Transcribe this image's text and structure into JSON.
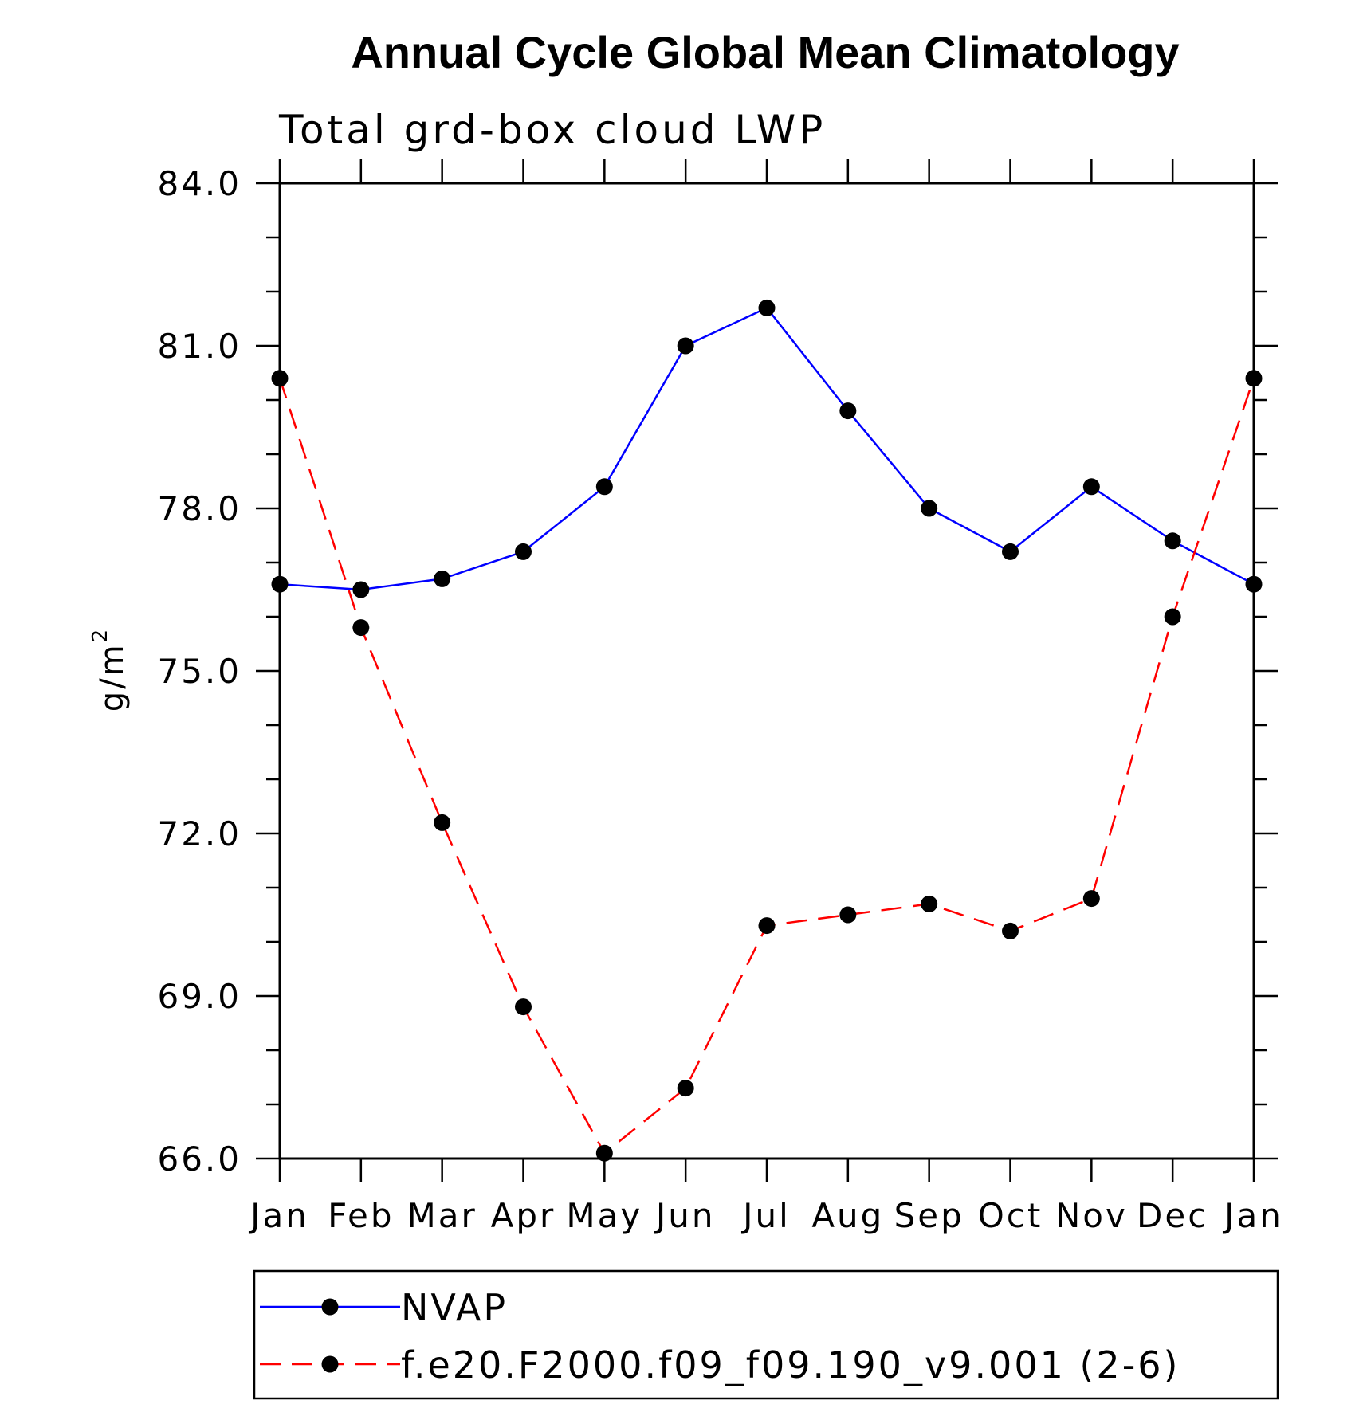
{
  "chart_data": {
    "type": "line",
    "title": "Annual Cycle Global Mean Climatology",
    "subtitle": "Total grd-box cloud LWP",
    "xlabel": "",
    "ylabel": "g/m",
    "ylabel_superscript": "2",
    "categories": [
      "Jan",
      "Feb",
      "Mar",
      "Apr",
      "May",
      "Jun",
      "Jul",
      "Aug",
      "Sep",
      "Oct",
      "Nov",
      "Dec",
      "Jan"
    ],
    "ylim": [
      66.0,
      84.0
    ],
    "y_ticks": [
      "66.0",
      "69.0",
      "72.0",
      "75.0",
      "78.0",
      "81.0",
      "84.0"
    ],
    "grid": false,
    "legend_placement": "bottom",
    "series": [
      {
        "name": "NVAP",
        "color": "#0000ff",
        "line_style": "solid",
        "marker": "filled-circle",
        "values": [
          76.6,
          76.5,
          76.7,
          77.2,
          78.4,
          81.0,
          81.7,
          79.8,
          78.0,
          77.2,
          78.4,
          77.4,
          76.6
        ]
      },
      {
        "name": "f.e20.F2000.f09_f09.190_v9.001 (2-6)",
        "color": "#ff0000",
        "line_style": "dashed",
        "marker": "filled-circle",
        "values": [
          80.4,
          75.8,
          72.2,
          68.8,
          66.1,
          67.3,
          70.3,
          70.5,
          70.7,
          70.2,
          70.8,
          76.0,
          80.4
        ]
      }
    ]
  }
}
